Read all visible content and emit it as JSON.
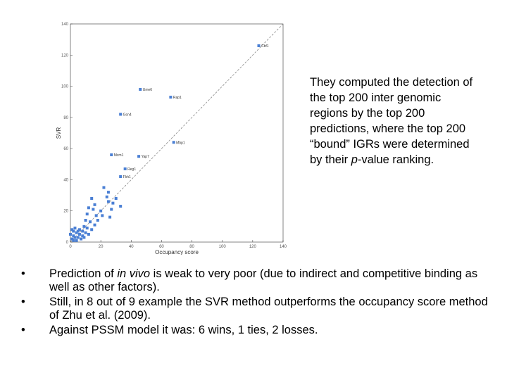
{
  "side_text": {
    "pre": "They computed the detection of the top 200 inter genomic regions by the top 200 predictions, where the top 200 “bound” IGRs were determined by their ",
    "italic": "p",
    "post": "-value ranking."
  },
  "bullets": [
    {
      "pre": "Prediction of ",
      "italic": "in vivo",
      "post": " is weak to very poor (due to indirect and competitive binding as well as other factors)."
    },
    {
      "pre": "Still, in 8 out of 9 example the SVR method outperforms the occupancy score method of Zhu et al. (2009).",
      "italic": "",
      "post": ""
    },
    {
      "pre": "Against PSSM model it was: 6 wins, 1 ties, 2 losses.",
      "italic": "",
      "post": ""
    }
  ],
  "bullet_symbol": "•",
  "chart_data": {
    "type": "scatter",
    "title": "",
    "xlabel": "Occupancy score",
    "ylabel": "SVR",
    "xlim": [
      0,
      140
    ],
    "ylim": [
      0,
      140
    ],
    "xticks": [
      "0",
      "20",
      "40",
      "60",
      "80",
      "100",
      "120",
      "140"
    ],
    "yticks": [
      "0",
      "20",
      "40",
      "60",
      "80",
      "100",
      "120",
      "140"
    ],
    "diagonal_reference": true,
    "point_color": "#4a7fd4",
    "labeled_points": [
      {
        "label": "Cbf1",
        "x": 124,
        "y": 126
      },
      {
        "label": "Ume6",
        "x": 46,
        "y": 98
      },
      {
        "label": "Rap1",
        "x": 66,
        "y": 93
      },
      {
        "label": "Gcn4",
        "x": 33,
        "y": 82
      },
      {
        "label": "Mbp1",
        "x": 68,
        "y": 64
      },
      {
        "label": "Mcm1",
        "x": 27,
        "y": 56
      },
      {
        "label": "Yap7",
        "x": 45,
        "y": 55
      },
      {
        "label": "Reg1",
        "x": 36,
        "y": 47
      },
      {
        "label": "Fkh1",
        "x": 33,
        "y": 42
      }
    ],
    "points": [
      {
        "x": 22,
        "y": 35
      },
      {
        "x": 25,
        "y": 32
      },
      {
        "x": 14,
        "y": 28
      },
      {
        "x": 16,
        "y": 24
      },
      {
        "x": 24,
        "y": 29
      },
      {
        "x": 30,
        "y": 28
      },
      {
        "x": 25,
        "y": 26
      },
      {
        "x": 12,
        "y": 22
      },
      {
        "x": 15,
        "y": 21
      },
      {
        "x": 20,
        "y": 20
      },
      {
        "x": 27,
        "y": 21
      },
      {
        "x": 33,
        "y": 23
      },
      {
        "x": 11,
        "y": 18
      },
      {
        "x": 17,
        "y": 17
      },
      {
        "x": 21,
        "y": 17
      },
      {
        "x": 26,
        "y": 16
      },
      {
        "x": 10,
        "y": 14
      },
      {
        "x": 13,
        "y": 13
      },
      {
        "x": 16,
        "y": 11
      },
      {
        "x": 9,
        "y": 10
      },
      {
        "x": 11,
        "y": 9
      },
      {
        "x": 14,
        "y": 8
      },
      {
        "x": 6,
        "y": 8
      },
      {
        "x": 8,
        "y": 7
      },
      {
        "x": 10,
        "y": 6
      },
      {
        "x": 4,
        "y": 6
      },
      {
        "x": 6,
        "y": 5
      },
      {
        "x": 8,
        "y": 4
      },
      {
        "x": 2,
        "y": 4
      },
      {
        "x": 3,
        "y": 3
      },
      {
        "x": 5,
        "y": 3
      },
      {
        "x": 7,
        "y": 2
      },
      {
        "x": 1,
        "y": 2
      },
      {
        "x": 2,
        "y": 1
      },
      {
        "x": 4,
        "y": 1
      },
      {
        "x": 1,
        "y": 8
      },
      {
        "x": 3,
        "y": 9
      },
      {
        "x": 5,
        "y": 7
      },
      {
        "x": 12,
        "y": 5
      },
      {
        "x": 2,
        "y": 7
      },
      {
        "x": 18,
        "y": 14
      },
      {
        "x": 28,
        "y": 25
      },
      {
        "x": 9,
        "y": 3
      },
      {
        "x": 0,
        "y": 5
      }
    ]
  }
}
